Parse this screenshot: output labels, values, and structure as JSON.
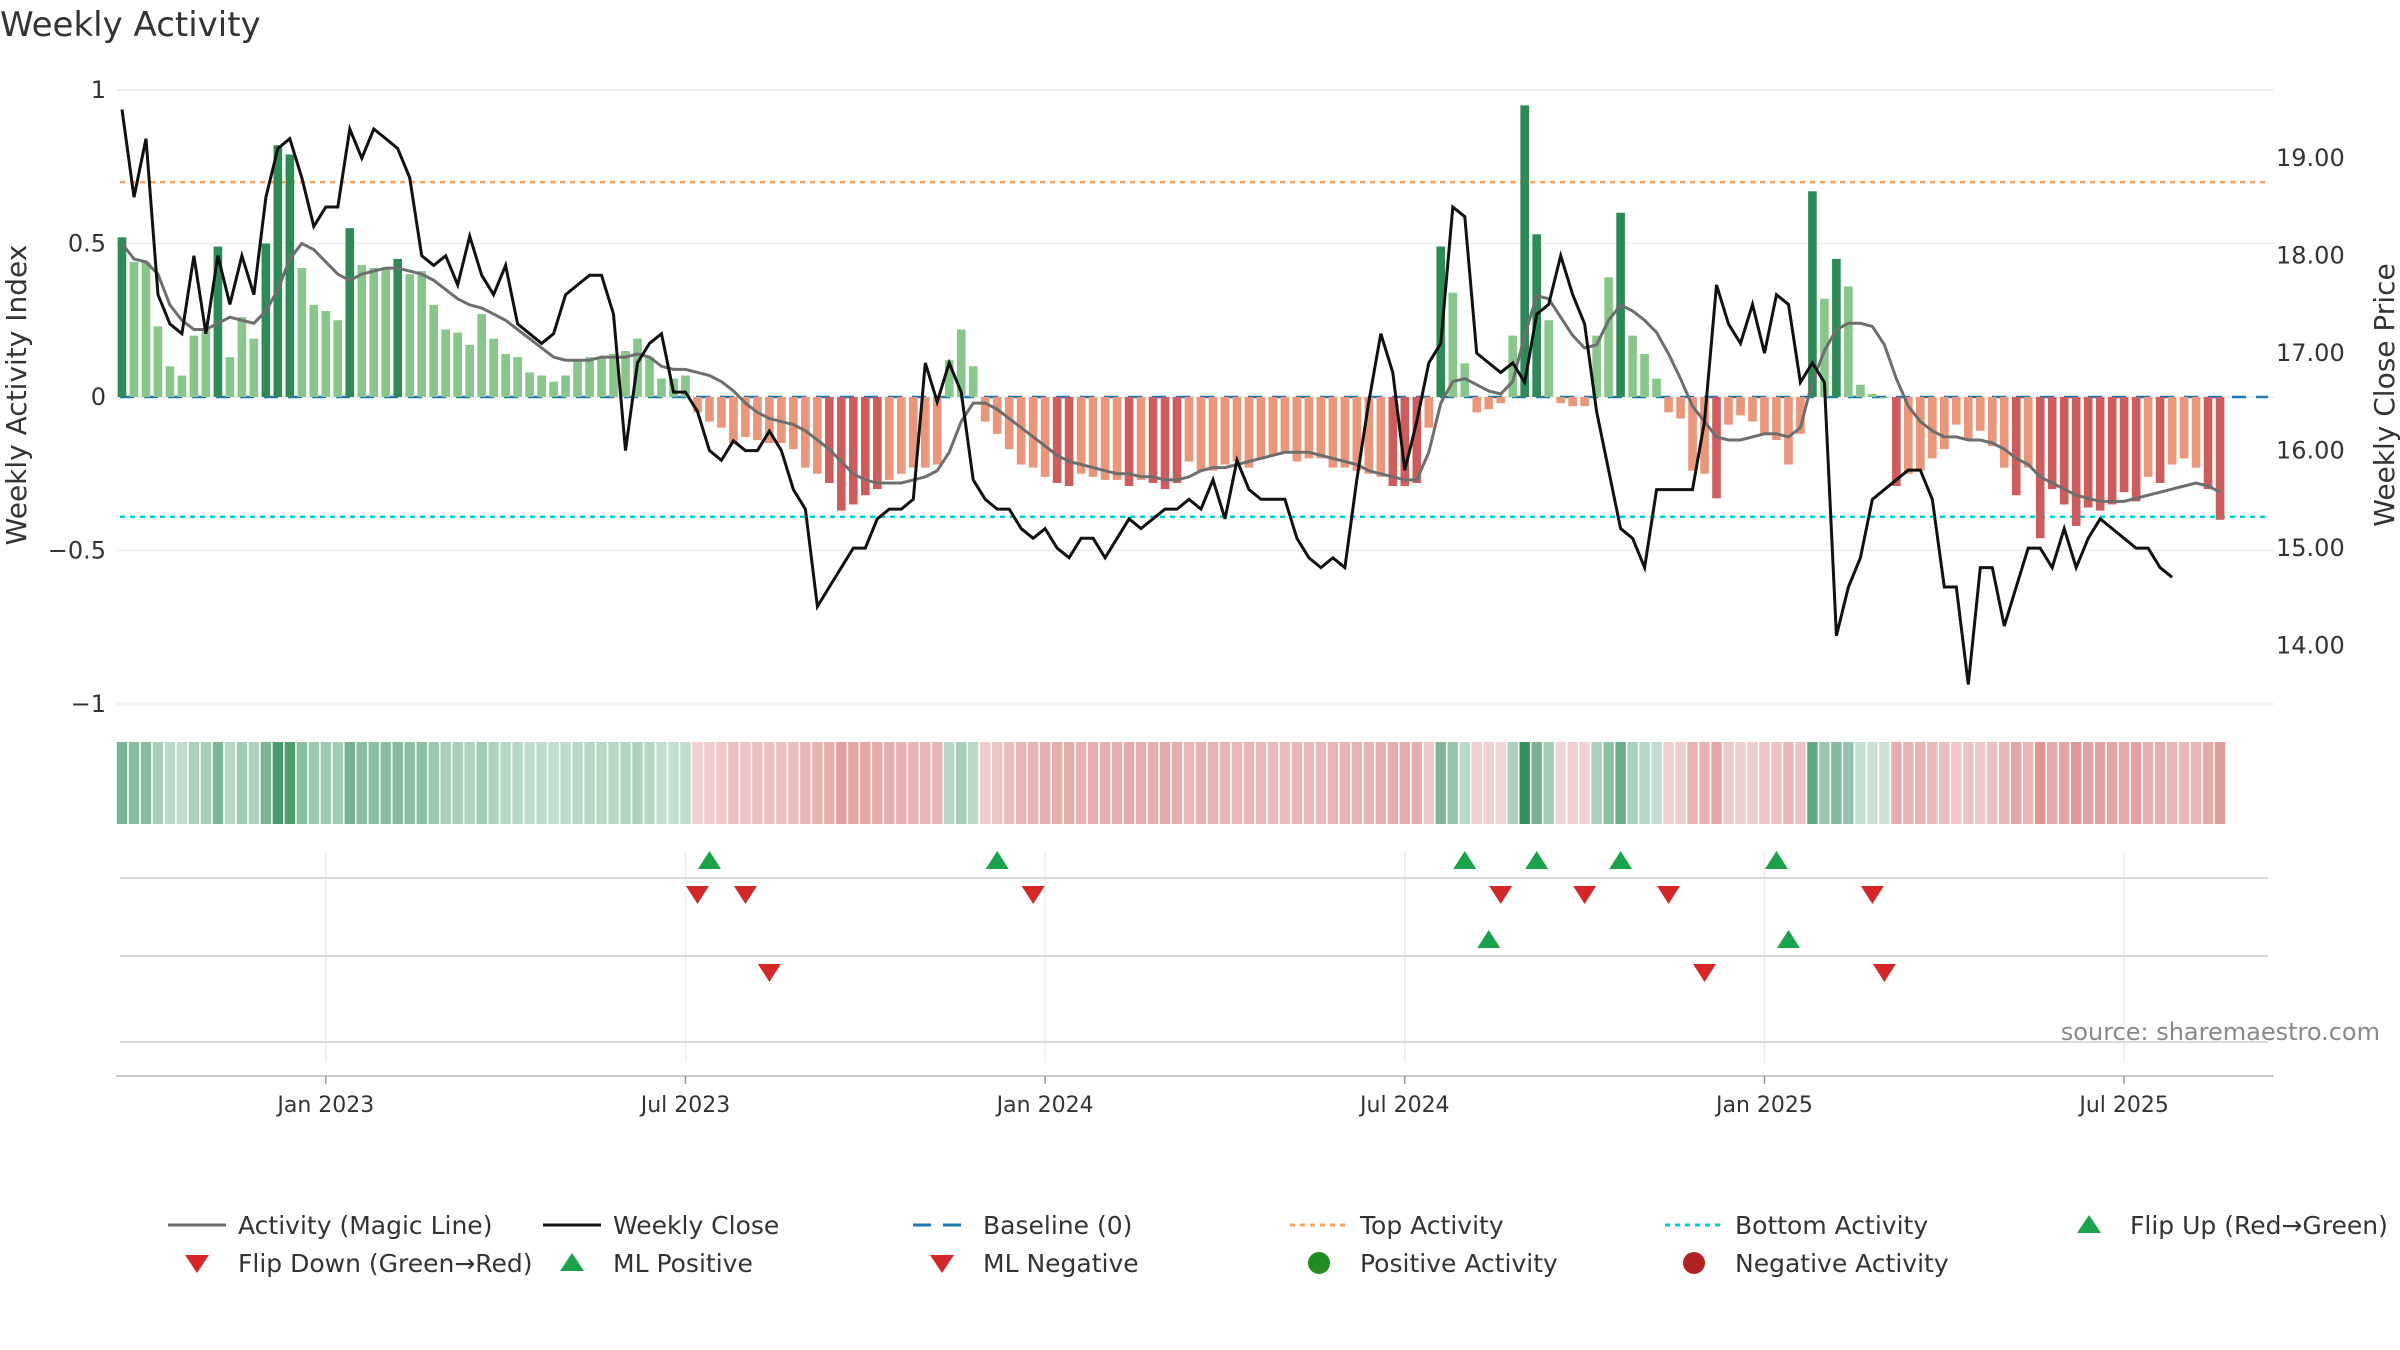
{
  "chart_data": {
    "type": "bar",
    "title": "Weekly Activity",
    "ylabel_left": "Weekly Activity Index",
    "ylabel_right": "Weekly Close Price",
    "ylim_left": [
      -1,
      1
    ],
    "ylim_right": [
      13.4,
      19.7
    ],
    "left_ticks": [
      {
        "v": 1,
        "label": "1"
      },
      {
        "v": 0.5,
        "label": "0.5"
      },
      {
        "v": 0,
        "label": "0"
      },
      {
        "v": -0.5,
        "label": "−0.5"
      },
      {
        "v": -1,
        "label": "−1"
      }
    ],
    "right_ticks": [
      {
        "v": 19,
        "label": "19.00"
      },
      {
        "v": 18,
        "label": "18.00"
      },
      {
        "v": 17,
        "label": "17.00"
      },
      {
        "v": 16,
        "label": "16.00"
      },
      {
        "v": 15,
        "label": "15.00"
      },
      {
        "v": 14,
        "label": "14.00"
      }
    ],
    "x_ticks": [
      {
        "week": 17.5,
        "label": "Jan 2023"
      },
      {
        "week": 47.5,
        "label": "Jul 2023"
      },
      {
        "week": 77.5,
        "label": "Jan 2024"
      },
      {
        "week": 107.5,
        "label": "Jul 2024"
      },
      {
        "week": 137.5,
        "label": "Jan 2025"
      },
      {
        "week": 167.5,
        "label": "Jul 2025"
      }
    ],
    "weeks": 180,
    "levels": {
      "top_activity": 0.7,
      "bottom_activity": -0.39,
      "baseline": 0
    },
    "activity": [
      0.52,
      0.44,
      0.44,
      0.23,
      0.1,
      0.07,
      0.2,
      0.22,
      0.49,
      0.13,
      0.26,
      0.19,
      0.5,
      0.82,
      0.79,
      0.42,
      0.3,
      0.28,
      0.25,
      0.55,
      0.43,
      0.42,
      0.42,
      0.45,
      0.4,
      0.41,
      0.3,
      0.22,
      0.21,
      0.17,
      0.27,
      0.19,
      0.14,
      0.13,
      0.08,
      0.07,
      0.05,
      0.07,
      0.12,
      0.13,
      0.13,
      0.14,
      0.15,
      0.19,
      0.13,
      0.06,
      0.06,
      0.07,
      -0.05,
      -0.08,
      -0.1,
      -0.15,
      -0.13,
      -0.14,
      -0.15,
      -0.15,
      -0.17,
      -0.23,
      -0.25,
      -0.28,
      -0.37,
      -0.35,
      -0.32,
      -0.3,
      -0.27,
      -0.25,
      -0.23,
      -0.23,
      -0.22,
      0.12,
      0.22,
      0.1,
      -0.08,
      -0.12,
      -0.17,
      -0.22,
      -0.23,
      -0.26,
      -0.28,
      -0.29,
      -0.25,
      -0.26,
      -0.27,
      -0.27,
      -0.29,
      -0.27,
      -0.28,
      -0.3,
      -0.28,
      -0.21,
      -0.24,
      -0.24,
      -0.22,
      -0.21,
      -0.23,
      -0.2,
      -0.19,
      -0.18,
      -0.21,
      -0.2,
      -0.2,
      -0.23,
      -0.23,
      -0.24,
      -0.25,
      -0.26,
      -0.29,
      -0.29,
      -0.28,
      -0.1,
      0.49,
      0.34,
      0.11,
      -0.05,
      -0.04,
      -0.02,
      0.2,
      0.95,
      0.53,
      0.25,
      -0.02,
      -0.03,
      -0.03,
      0.2,
      0.39,
      0.6,
      0.2,
      0.14,
      0.06,
      -0.05,
      -0.07,
      -0.24,
      -0.25,
      -0.33,
      -0.09,
      -0.06,
      -0.08,
      -0.12,
      -0.14,
      -0.22,
      -0.12,
      0.67,
      0.32,
      0.45,
      0.36,
      0.04,
      0.01,
      0.0,
      -0.29,
      -0.25,
      -0.24,
      -0.2,
      -0.17,
      -0.09,
      -0.14,
      -0.11,
      -0.16,
      -0.23,
      -0.32,
      -0.23,
      -0.46,
      -0.3,
      -0.35,
      -0.42,
      -0.36,
      -0.37,
      -0.35,
      -0.31,
      -0.34,
      -0.26,
      -0.28,
      -0.22,
      -0.2,
      -0.23,
      -0.3,
      -0.4
    ],
    "magic_line": [
      0.5,
      0.45,
      0.44,
      0.4,
      0.3,
      0.25,
      0.22,
      0.22,
      0.24,
      0.26,
      0.25,
      0.24,
      0.28,
      0.35,
      0.45,
      0.5,
      0.48,
      0.44,
      0.4,
      0.38,
      0.4,
      0.41,
      0.42,
      0.42,
      0.41,
      0.4,
      0.38,
      0.35,
      0.32,
      0.3,
      0.29,
      0.27,
      0.25,
      0.22,
      0.19,
      0.16,
      0.13,
      0.12,
      0.12,
      0.12,
      0.13,
      0.13,
      0.13,
      0.14,
      0.13,
      0.1,
      0.09,
      0.09,
      0.08,
      0.07,
      0.05,
      0.02,
      -0.02,
      -0.05,
      -0.07,
      -0.08,
      -0.09,
      -0.11,
      -0.14,
      -0.17,
      -0.21,
      -0.25,
      -0.27,
      -0.28,
      -0.28,
      -0.28,
      -0.27,
      -0.26,
      -0.24,
      -0.18,
      -0.08,
      -0.02,
      -0.02,
      -0.04,
      -0.07,
      -0.1,
      -0.13,
      -0.16,
      -0.19,
      -0.21,
      -0.22,
      -0.23,
      -0.24,
      -0.25,
      -0.25,
      -0.26,
      -0.26,
      -0.27,
      -0.27,
      -0.26,
      -0.24,
      -0.23,
      -0.23,
      -0.22,
      -0.21,
      -0.2,
      -0.19,
      -0.18,
      -0.18,
      -0.18,
      -0.19,
      -0.2,
      -0.21,
      -0.22,
      -0.24,
      -0.25,
      -0.26,
      -0.27,
      -0.27,
      -0.18,
      -0.02,
      0.05,
      0.06,
      0.04,
      0.02,
      0.01,
      0.05,
      0.2,
      0.33,
      0.32,
      0.26,
      0.2,
      0.16,
      0.17,
      0.25,
      0.3,
      0.28,
      0.25,
      0.21,
      0.14,
      0.06,
      -0.03,
      -0.08,
      -0.13,
      -0.14,
      -0.14,
      -0.13,
      -0.12,
      -0.12,
      -0.13,
      -0.1,
      0.05,
      0.15,
      0.22,
      0.24,
      0.24,
      0.23,
      0.17,
      0.06,
      -0.03,
      -0.08,
      -0.11,
      -0.13,
      -0.13,
      -0.14,
      -0.14,
      -0.15,
      -0.17,
      -0.2,
      -0.22,
      -0.26,
      -0.28,
      -0.3,
      -0.32,
      -0.33,
      -0.34,
      -0.34,
      -0.34,
      -0.33,
      -0.32,
      -0.31,
      -0.3,
      -0.29,
      -0.28,
      -0.29,
      -0.31
    ],
    "weekly_close": [
      19.5,
      18.6,
      19.2,
      17.6,
      17.3,
      17.2,
      18.0,
      17.2,
      18.0,
      17.5,
      18.0,
      17.6,
      18.6,
      19.1,
      19.2,
      18.8,
      18.3,
      18.5,
      18.5,
      19.3,
      19.0,
      19.3,
      19.2,
      19.1,
      18.8,
      18.0,
      17.9,
      18.0,
      17.7,
      18.2,
      17.8,
      17.6,
      17.9,
      17.3,
      17.2,
      17.1,
      17.2,
      17.6,
      17.7,
      17.8,
      17.8,
      17.4,
      16.0,
      16.9,
      17.1,
      17.2,
      16.6,
      16.6,
      16.4,
      16.0,
      15.9,
      16.1,
      16.0,
      16.0,
      16.2,
      16.0,
      15.6,
      15.4,
      14.4,
      14.6,
      14.8,
      15.0,
      15.0,
      15.3,
      15.4,
      15.4,
      15.5,
      16.9,
      16.5,
      16.9,
      16.6,
      15.7,
      15.5,
      15.4,
      15.4,
      15.2,
      15.1,
      15.2,
      15.0,
      14.9,
      15.1,
      15.1,
      14.9,
      15.1,
      15.3,
      15.2,
      15.3,
      15.4,
      15.4,
      15.5,
      15.4,
      15.7,
      15.3,
      15.9,
      15.6,
      15.5,
      15.5,
      15.5,
      15.1,
      14.9,
      14.8,
      14.9,
      14.8,
      15.7,
      16.5,
      17.2,
      16.8,
      15.8,
      16.3,
      16.9,
      17.1,
      18.5,
      18.4,
      17.0,
      16.9,
      16.8,
      16.9,
      16.7,
      17.4,
      17.5,
      18.0,
      17.6,
      17.3,
      16.4,
      15.8,
      15.2,
      15.1,
      14.8,
      15.6,
      15.6,
      15.6,
      15.6,
      16.3,
      17.7,
      17.3,
      17.1,
      17.5,
      17.0,
      17.6,
      17.5,
      16.7,
      16.9,
      16.7,
      14.1,
      14.6,
      14.9,
      15.5,
      15.6,
      15.7,
      15.8,
      15.8,
      15.5,
      14.6,
      14.6,
      13.6,
      14.8,
      14.8,
      14.2,
      14.6,
      15.0,
      15.0,
      14.8,
      15.2,
      14.8,
      15.1,
      15.3,
      15.2,
      15.1,
      15.0,
      15.0,
      14.8,
      14.7
    ],
    "flip_up": [
      49,
      73,
      112,
      118,
      125,
      138
    ],
    "flip_down": [
      48,
      52,
      76,
      115,
      122,
      129,
      146
    ],
    "ml_positive": [
      114,
      139
    ],
    "ml_negative": [
      54,
      132,
      147
    ],
    "annotation": "source: sharemaestro.com",
    "legend": [
      "Activity (Magic Line)",
      "Weekly Close",
      "Baseline (0)",
      "Top Activity",
      "Bottom Activity",
      "Flip Up (Red→Green)",
      "Flip Down (Green→Red)",
      "ML Positive",
      "ML Negative",
      "Positive Activity",
      "Negative Activity"
    ]
  },
  "colors": {
    "pos_strong": "#2e8b57",
    "pos_light": "#88c68b",
    "neg_strong": "#cd5c5c",
    "neg_light": "#e9967a",
    "magic_line": "#6e6e6e",
    "close": "#111111",
    "baseline": "#1f77b4",
    "top": "#f4a460",
    "bottom": "#00ced1",
    "flip_up": "#1aa34a",
    "flip_down": "#d62728",
    "pos_dot": "#228b22",
    "neg_dot": "#b22222",
    "source": "#888888"
  }
}
